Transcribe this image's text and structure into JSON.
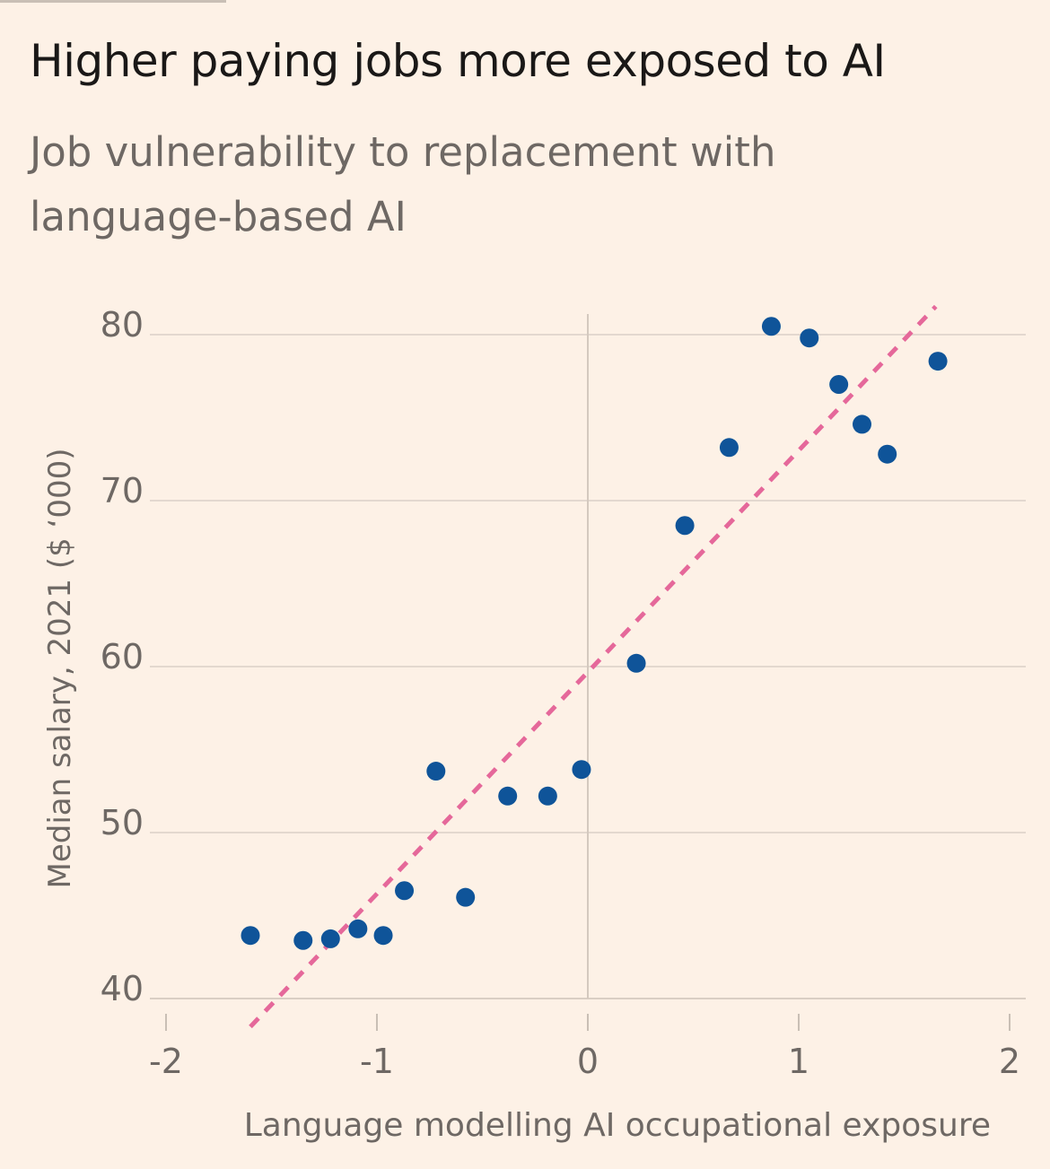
{
  "title": "Higher paying jobs more exposed to AI",
  "subtitle": "Job vulnerability to replacement with language-based AI",
  "chart_data": {
    "type": "scatter",
    "title": "Higher paying jobs more exposed to AI",
    "subtitle": "Job vulnerability to replacement with language-based AI",
    "xlabel": "Language modelling AI occupational exposure",
    "ylabel": "Median salary, 2021 ($ ‘000)",
    "xlim": [
      -2,
      2
    ],
    "ylim": [
      40,
      80
    ],
    "xticks": [
      -2,
      -1,
      0,
      1,
      2
    ],
    "yticks": [
      40,
      50,
      60,
      70,
      80
    ],
    "x_tick_labels": [
      "-2",
      "-1",
      "0",
      "1",
      "2"
    ],
    "y_tick_labels": [
      "40",
      "50",
      "60",
      "70",
      "80"
    ],
    "grid": "horizontal",
    "points": [
      {
        "x": -1.6,
        "y": 43.8
      },
      {
        "x": -1.35,
        "y": 43.5
      },
      {
        "x": -1.22,
        "y": 43.6
      },
      {
        "x": -1.09,
        "y": 44.2
      },
      {
        "x": -0.97,
        "y": 43.8
      },
      {
        "x": -0.87,
        "y": 46.5
      },
      {
        "x": -0.72,
        "y": 53.7
      },
      {
        "x": -0.58,
        "y": 46.1
      },
      {
        "x": -0.38,
        "y": 52.2
      },
      {
        "x": -0.19,
        "y": 52.2
      },
      {
        "x": -0.03,
        "y": 53.8
      },
      {
        "x": 0.23,
        "y": 60.2
      },
      {
        "x": 0.46,
        "y": 68.5
      },
      {
        "x": 0.67,
        "y": 73.2
      },
      {
        "x": 0.87,
        "y": 80.5
      },
      {
        "x": 1.05,
        "y": 79.8
      },
      {
        "x": 1.19,
        "y": 77.0
      },
      {
        "x": 1.3,
        "y": 74.6
      },
      {
        "x": 1.42,
        "y": 72.8
      },
      {
        "x": 1.66,
        "y": 78.4
      }
    ],
    "trendline": {
      "x": [
        -1.6,
        1.65
      ],
      "y": [
        38.3,
        81.7
      ]
    },
    "colors": {
      "points": "#0f5499",
      "trendline": "#e5689a",
      "grid": "#e3d8cf",
      "zero_line": "#d4c9bf",
      "tick_text": "#6e6864",
      "background": "#fdf1e6"
    }
  }
}
